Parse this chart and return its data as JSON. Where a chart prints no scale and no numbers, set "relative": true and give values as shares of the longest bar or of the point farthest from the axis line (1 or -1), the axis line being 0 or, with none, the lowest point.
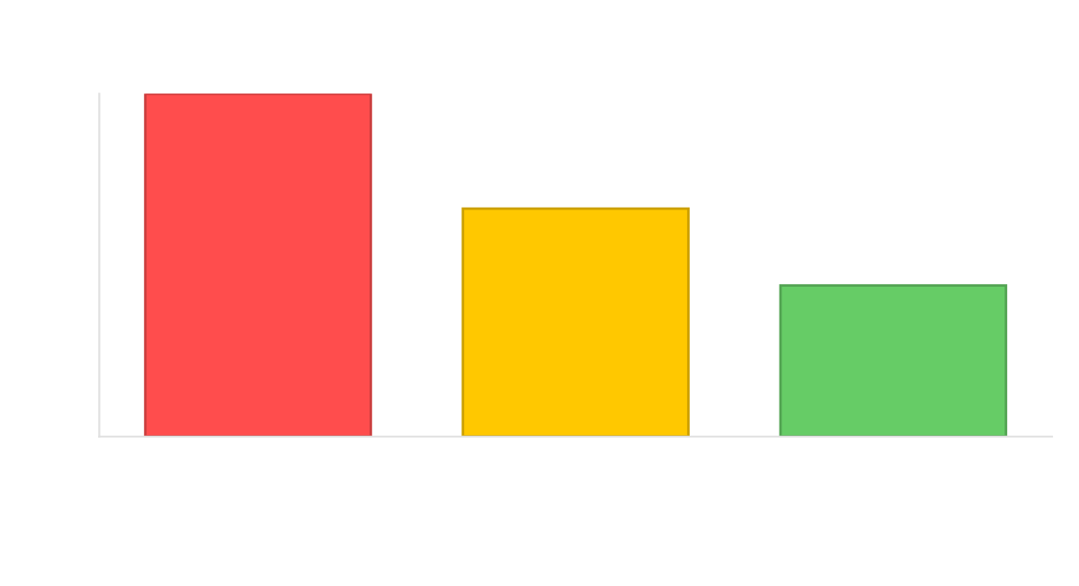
{
  "chart_data": {
    "type": "bar",
    "relative": true,
    "categories": [
      null,
      null,
      null
    ],
    "values": [
      1,
      0.665,
      0.441
    ],
    "colors": [
      "#ff4d4d",
      "#ffc800",
      "#66cc66"
    ],
    "grid": false
  }
}
